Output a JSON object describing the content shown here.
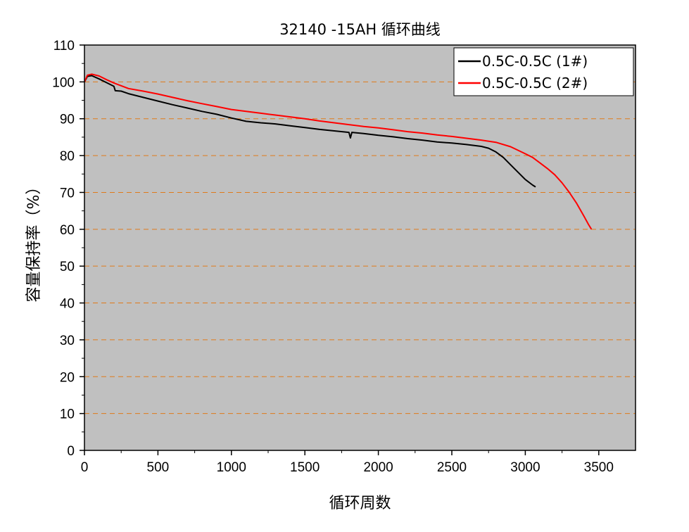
{
  "chart_data": {
    "type": "line",
    "title": "32140 -15AH 循环曲线",
    "xlabel": "循环周数",
    "ylabel": "容量保持率（%）",
    "xlim": [
      0,
      3750
    ],
    "ylim": [
      0,
      110
    ],
    "x_ticks": [
      0,
      500,
      1000,
      1500,
      2000,
      2500,
      3000,
      3500
    ],
    "y_ticks": [
      0,
      10,
      20,
      30,
      40,
      50,
      60,
      70,
      80,
      90,
      100,
      110
    ],
    "grid": "horizontal dashed",
    "legend_position": "top-right",
    "plot_background": "#c0c0c0",
    "grid_color": "#e07a1a",
    "series": [
      {
        "name": "0.5C-0.5C (1#)",
        "color": "#000000",
        "x": [
          0,
          20,
          50,
          100,
          150,
          200,
          210,
          250,
          300,
          400,
          500,
          600,
          700,
          800,
          900,
          1000,
          1100,
          1200,
          1300,
          1400,
          1500,
          1600,
          1700,
          1800,
          1810,
          1820,
          1900,
          2000,
          2100,
          2200,
          2300,
          2400,
          2500,
          2600,
          2700,
          2750,
          2800,
          2850,
          2900,
          2950,
          3000,
          3050,
          3070
        ],
        "y": [
          100,
          101.5,
          101.7,
          100.8,
          99.8,
          98.8,
          97.6,
          97.5,
          96.8,
          95.8,
          94.8,
          93.8,
          92.9,
          92.0,
          91.2,
          90.2,
          89.3,
          88.9,
          88.6,
          88.1,
          87.6,
          87.1,
          86.7,
          86.3,
          84.8,
          86.3,
          86.0,
          85.5,
          85.1,
          84.6,
          84.2,
          83.7,
          83.4,
          83.0,
          82.5,
          82.0,
          81.0,
          79.5,
          77.5,
          75.5,
          73.5,
          72.0,
          71.5
        ]
      },
      {
        "name": "0.5C-0.5C (2#)",
        "color": "#ff0000",
        "x": [
          0,
          20,
          50,
          100,
          150,
          200,
          300,
          400,
          500,
          600,
          700,
          800,
          900,
          1000,
          1100,
          1200,
          1300,
          1400,
          1500,
          1600,
          1700,
          1800,
          1900,
          2000,
          2100,
          2200,
          2300,
          2400,
          2500,
          2600,
          2700,
          2800,
          2900,
          3000,
          3050,
          3100,
          3150,
          3200,
          3250,
          3300,
          3350,
          3400,
          3430,
          3450
        ],
        "y": [
          100,
          101.8,
          102.1,
          101.6,
          100.6,
          99.7,
          98.2,
          97.5,
          96.7,
          95.8,
          94.9,
          94.1,
          93.3,
          92.5,
          92.0,
          91.5,
          91.0,
          90.5,
          90.0,
          89.4,
          88.9,
          88.4,
          87.9,
          87.5,
          87.0,
          86.5,
          86.1,
          85.6,
          85.2,
          84.7,
          84.2,
          83.6,
          82.4,
          80.5,
          79.5,
          78.0,
          76.5,
          74.8,
          72.6,
          70.0,
          67.0,
          63.5,
          61.3,
          60.0
        ]
      }
    ]
  }
}
